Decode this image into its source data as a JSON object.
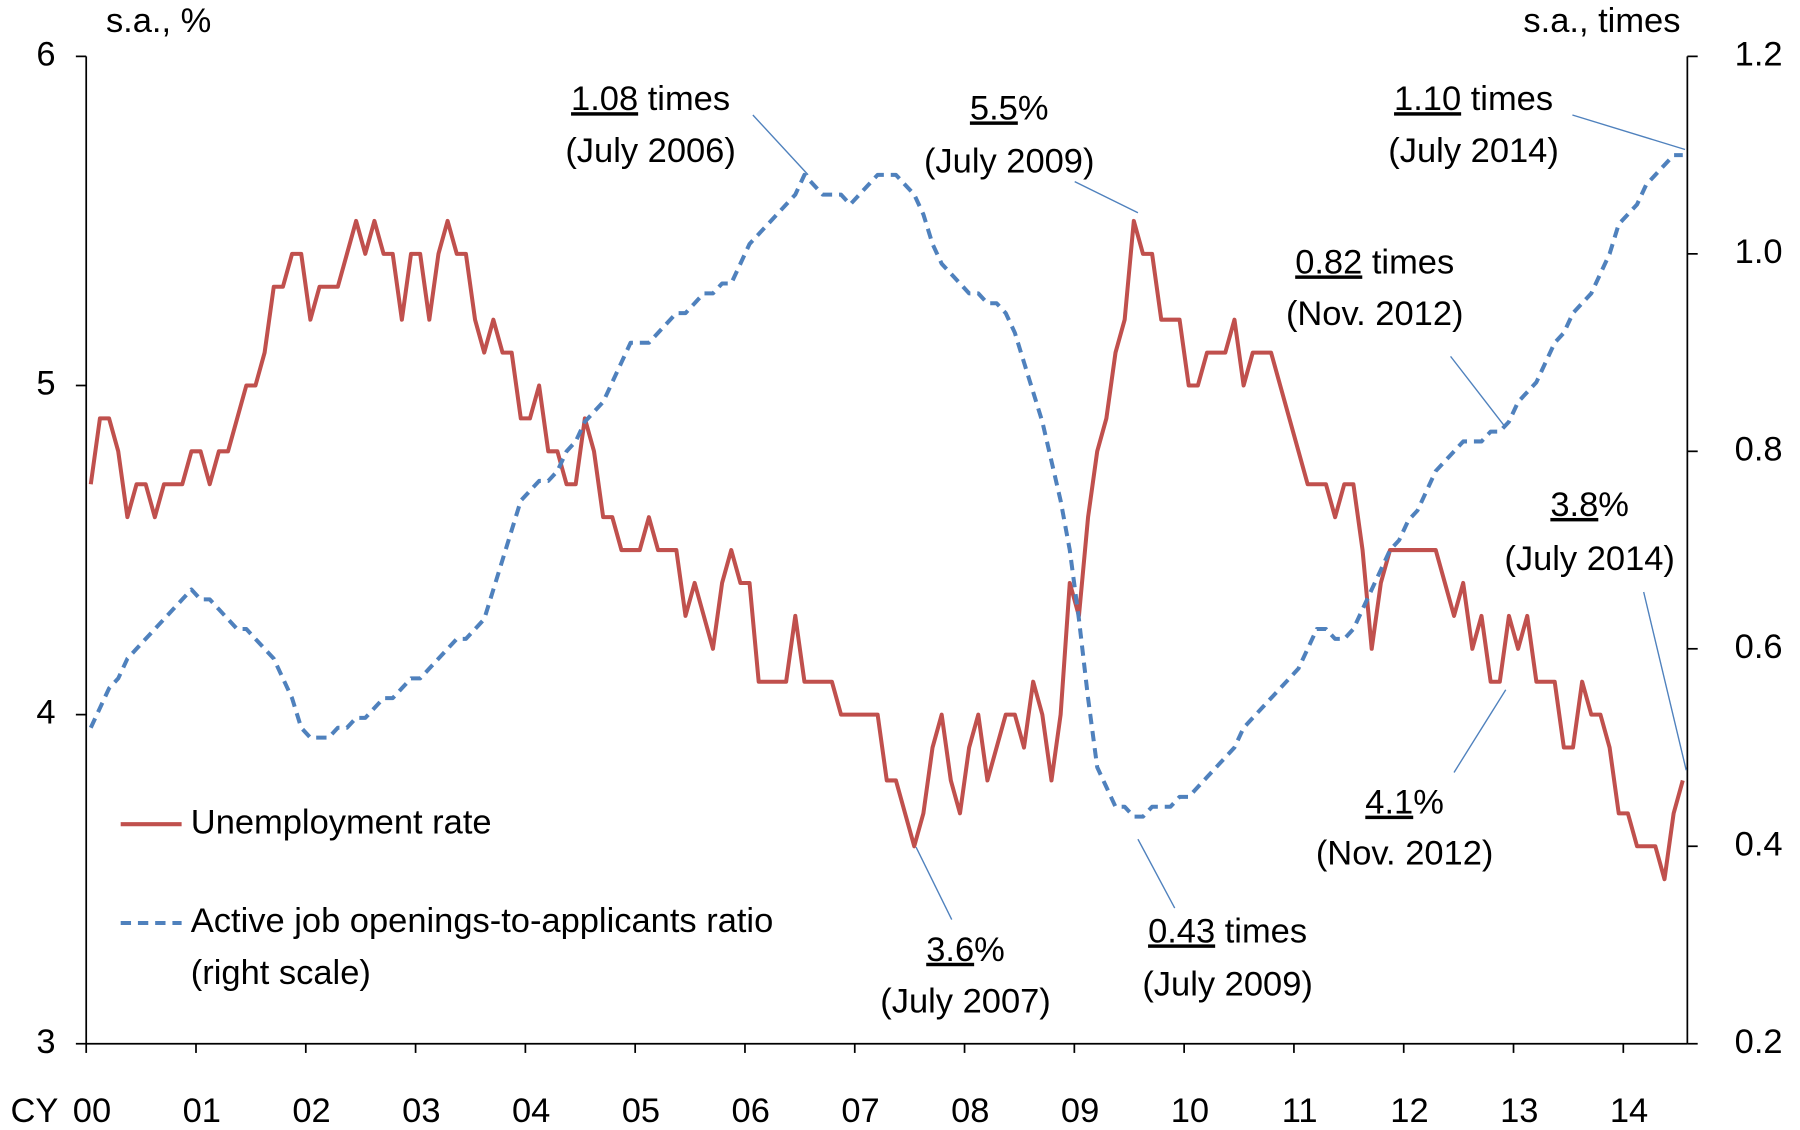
{
  "chart_data": {
    "type": "line",
    "y_label": "s.a., %",
    "y2_label": "s.a., times",
    "x_label": "CY",
    "categories": [
      "00",
      null,
      null,
      null,
      null,
      null,
      null,
      null,
      null,
      null,
      null,
      null,
      "01",
      null,
      null,
      null,
      null,
      null,
      null,
      null,
      null,
      null,
      null,
      null,
      "02",
      null,
      null,
      null,
      null,
      null,
      null,
      null,
      null,
      null,
      null,
      null,
      "03",
      null,
      null,
      null,
      null,
      null,
      null,
      null,
      null,
      null,
      null,
      null,
      "04",
      null,
      null,
      null,
      null,
      null,
      null,
      null,
      null,
      null,
      null,
      null,
      "05",
      null,
      null,
      null,
      null,
      null,
      null,
      null,
      null,
      null,
      null,
      null,
      "06",
      null,
      null,
      null,
      null,
      null,
      null,
      null,
      null,
      null,
      null,
      null,
      "07",
      null,
      null,
      null,
      null,
      null,
      null,
      null,
      null,
      null,
      null,
      null,
      "08",
      null,
      null,
      null,
      null,
      null,
      null,
      null,
      null,
      null,
      null,
      null,
      "09",
      null,
      null,
      null,
      null,
      null,
      null,
      null,
      null,
      null,
      null,
      null,
      "10",
      null,
      null,
      null,
      null,
      null,
      null,
      null,
      null,
      null,
      null,
      null,
      "11",
      null,
      null,
      null,
      null,
      null,
      null,
      null,
      null,
      null,
      null,
      null,
      "12",
      null,
      null,
      null,
      null,
      null,
      null,
      null,
      null,
      null,
      null,
      null,
      "13",
      null,
      null,
      null,
      null,
      null,
      null,
      null,
      null,
      null,
      null,
      null,
      "14",
      null,
      null,
      null,
      null,
      null,
      null
    ],
    "series": [
      {
        "name": "Unemployment rate",
        "color": "#c0504d",
        "dash": false,
        "axis": "y",
        "values": [
          4.7,
          4.9,
          4.9,
          4.8,
          4.6,
          4.7,
          4.7,
          4.6,
          4.7,
          4.7,
          4.7,
          4.8,
          4.8,
          4.7,
          4.8,
          4.8,
          4.9,
          5.0,
          5.0,
          5.1,
          5.3,
          5.3,
          5.4,
          5.4,
          5.2,
          5.3,
          5.3,
          5.3,
          5.4,
          5.5,
          5.4,
          5.5,
          5.4,
          5.4,
          5.2,
          5.4,
          5.4,
          5.2,
          5.4,
          5.5,
          5.4,
          5.4,
          5.2,
          5.1,
          5.2,
          5.1,
          5.1,
          4.9,
          4.9,
          5.0,
          4.8,
          4.8,
          4.7,
          4.7,
          4.9,
          4.8,
          4.6,
          4.6,
          4.5,
          4.5,
          4.5,
          4.6,
          4.5,
          4.5,
          4.5,
          4.3,
          4.4,
          4.3,
          4.2,
          4.4,
          4.5,
          4.4,
          4.4,
          4.1,
          4.1,
          4.1,
          4.1,
          4.3,
          4.1,
          4.1,
          4.1,
          4.1,
          4.0,
          4.0,
          4.0,
          4.0,
          4.0,
          3.8,
          3.8,
          3.7,
          3.6,
          3.7,
          3.9,
          4.0,
          3.8,
          3.7,
          3.9,
          4.0,
          3.8,
          3.9,
          4.0,
          4.0,
          3.9,
          4.1,
          4.0,
          3.8,
          4.0,
          4.4,
          4.3,
          4.6,
          4.8,
          4.9,
          5.1,
          5.2,
          5.5,
          5.4,
          5.4,
          5.2,
          5.2,
          5.2,
          5.0,
          5.0,
          5.1,
          5.1,
          5.1,
          5.2,
          5.0,
          5.1,
          5.1,
          5.1,
          5.0,
          4.9,
          4.8,
          4.7,
          4.7,
          4.7,
          4.6,
          4.7,
          4.7,
          4.5,
          4.2,
          4.4,
          4.5,
          4.5,
          4.5,
          4.5,
          4.5,
          4.5,
          4.4,
          4.3,
          4.4,
          4.2,
          4.3,
          4.1,
          4.1,
          4.3,
          4.2,
          4.3,
          4.1,
          4.1,
          4.1,
          3.9,
          3.9,
          4.1,
          4.0,
          4.0,
          3.9,
          3.7,
          3.7,
          3.6,
          3.6,
          3.6,
          3.5,
          3.7,
          3.8
        ]
      },
      {
        "name": "Active job openings-to-applicants ratio",
        "color": "#4f81bd",
        "dash": true,
        "axis": "y2",
        "values": [
          0.52,
          0.54,
          0.56,
          0.57,
          0.59,
          0.6,
          0.61,
          0.62,
          0.63,
          0.64,
          0.65,
          0.66,
          0.65,
          0.65,
          0.64,
          0.63,
          0.62,
          0.62,
          0.61,
          0.6,
          0.59,
          0.57,
          0.55,
          0.52,
          0.51,
          0.51,
          0.51,
          0.52,
          0.52,
          0.53,
          0.53,
          0.54,
          0.55,
          0.55,
          0.56,
          0.57,
          0.57,
          0.58,
          0.59,
          0.6,
          0.61,
          0.61,
          0.62,
          0.63,
          0.66,
          0.69,
          0.72,
          0.75,
          0.76,
          0.77,
          0.77,
          0.78,
          0.8,
          0.81,
          0.83,
          0.84,
          0.85,
          0.87,
          0.89,
          0.91,
          0.91,
          0.91,
          0.92,
          0.93,
          0.94,
          0.94,
          0.95,
          0.96,
          0.96,
          0.97,
          0.97,
          0.99,
          1.01,
          1.02,
          1.03,
          1.04,
          1.05,
          1.06,
          1.08,
          1.07,
          1.06,
          1.06,
          1.06,
          1.05,
          1.06,
          1.07,
          1.08,
          1.08,
          1.08,
          1.07,
          1.06,
          1.04,
          1.01,
          0.99,
          0.98,
          0.97,
          0.96,
          0.96,
          0.95,
          0.95,
          0.94,
          0.92,
          0.89,
          0.86,
          0.83,
          0.79,
          0.75,
          0.7,
          0.63,
          0.55,
          0.48,
          0.46,
          0.44,
          0.44,
          0.43,
          0.43,
          0.44,
          0.44,
          0.44,
          0.45,
          0.45,
          0.46,
          0.47,
          0.48,
          0.49,
          0.5,
          0.52,
          0.53,
          0.54,
          0.55,
          0.56,
          0.57,
          0.58,
          0.6,
          0.62,
          0.62,
          0.61,
          0.61,
          0.62,
          0.64,
          0.66,
          0.68,
          0.7,
          0.71,
          0.73,
          0.74,
          0.76,
          0.78,
          0.79,
          0.8,
          0.81,
          0.81,
          0.81,
          0.82,
          0.82,
          0.83,
          0.85,
          0.86,
          0.87,
          0.89,
          0.91,
          0.92,
          0.94,
          0.95,
          0.96,
          0.98,
          1.0,
          1.03,
          1.04,
          1.05,
          1.07,
          1.08,
          1.09,
          1.1,
          1.1
        ]
      }
    ],
    "legend_note": "(right scale)",
    "ylim": [
      3,
      6
    ],
    "yticks": [
      3,
      4,
      5,
      6
    ],
    "y2lim": [
      0.2,
      1.2
    ],
    "y2ticks": [
      0.2,
      0.4,
      0.6,
      0.8,
      {
        "value": 1.0,
        "label": "1.0"
      },
      1.2
    ],
    "grid": false,
    "legend": "lower left",
    "annotations": [
      {
        "value": "1.08",
        "text": " times",
        "note": "(July 2006)"
      },
      {
        "value": "5.5",
        "text": "%",
        "note": "(July 2009)"
      },
      {
        "value": "1.10",
        "text": " times",
        "note": "(July 2014)"
      },
      {
        "value": "0.82",
        "text": " times",
        "note": "(Nov. 2012)"
      },
      {
        "value": "3.8",
        "text": "%",
        "note": "(July 2014)"
      },
      {
        "value": "4.1",
        "text": "%",
        "note": "(Nov. 2012)"
      },
      {
        "value": "3.6",
        "text": "%",
        "note": "(July 2007)"
      },
      {
        "value": "0.43",
        "text": " times",
        "note": "(July 2009)"
      }
    ]
  }
}
